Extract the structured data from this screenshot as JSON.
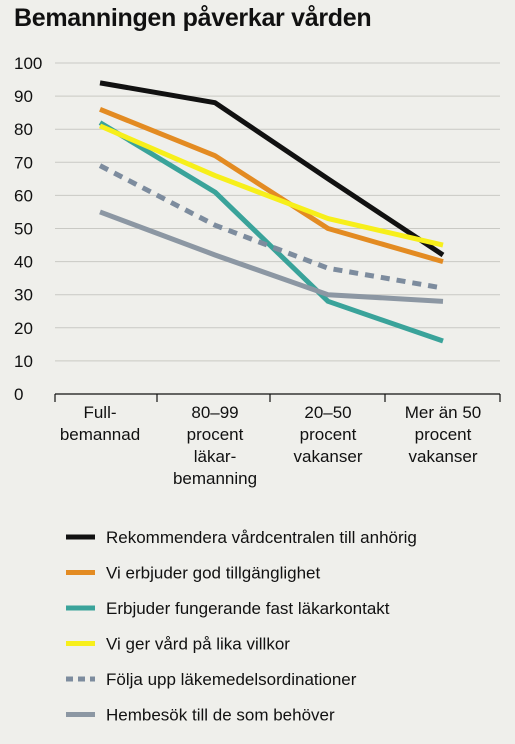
{
  "chart_data": {
    "type": "line",
    "title": "Bemanningen påverkar vården",
    "categories": [
      [
        "Full-",
        "bemannad"
      ],
      [
        "80–99",
        "procent",
        "läkar-",
        "bemanning"
      ],
      [
        "20–50",
        "procent",
        "vakanser"
      ],
      [
        "Mer än 50",
        "procent",
        "vakanser"
      ]
    ],
    "ylim": [
      0,
      100
    ],
    "yticks": [
      0,
      10,
      20,
      30,
      40,
      50,
      60,
      70,
      80,
      90,
      100
    ],
    "grid": true,
    "legend_position": "bottom",
    "series": [
      {
        "name": "Rekommendera vårdcentralen till anhörig",
        "color": "#111111",
        "dashed": false,
        "values": [
          94,
          88,
          65,
          42
        ]
      },
      {
        "name": "Vi erbjuder god tillgänglighet",
        "color": "#e38b22",
        "dashed": false,
        "values": [
          86,
          72,
          50,
          40
        ]
      },
      {
        "name": "Erbjuder fungerande fast läkarkontakt",
        "color": "#3aa39a",
        "dashed": false,
        "values": [
          82,
          61,
          28,
          16
        ]
      },
      {
        "name": "Vi ger vård på lika villkor",
        "color": "#f7ef1a",
        "dashed": false,
        "values": [
          81,
          66,
          53,
          45
        ]
      },
      {
        "name": "Följa upp läkemedelsordinationer",
        "color": "#7d8c9e",
        "dashed": true,
        "values": [
          69,
          51,
          38,
          32
        ]
      },
      {
        "name": "Hembesök till de som behöver",
        "color": "#8c97a3",
        "dashed": false,
        "values": [
          55,
          42,
          30,
          28
        ]
      }
    ]
  }
}
